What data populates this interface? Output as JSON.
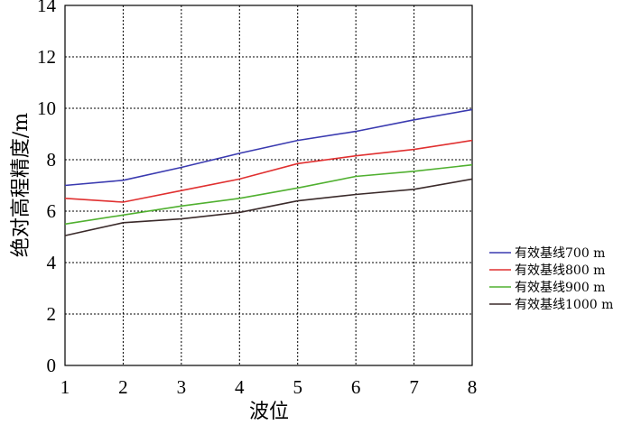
{
  "chart_data": {
    "type": "line",
    "xlabel": "波位",
    "ylabel": "绝对高程精度/m",
    "xlim": [
      1,
      8
    ],
    "ylim": [
      0,
      14
    ],
    "x_ticks": [
      "1",
      "2",
      "3",
      "4",
      "5",
      "6",
      "7",
      "8"
    ],
    "y_ticks": [
      "0",
      "2",
      "4",
      "6",
      "8",
      "10",
      "12",
      "14"
    ],
    "grid": true,
    "legend_position": "right",
    "x": [
      1,
      2,
      3,
      4,
      5,
      6,
      7,
      8
    ],
    "series": [
      {
        "name": "有效基线700 m",
        "color": "#3a3ab0",
        "values": [
          7.0,
          7.2,
          7.7,
          8.25,
          8.75,
          9.1,
          9.55,
          9.95
        ]
      },
      {
        "name": "有效基线800 m",
        "color": "#e03030",
        "values": [
          6.5,
          6.35,
          6.8,
          7.25,
          7.85,
          8.15,
          8.4,
          8.75
        ]
      },
      {
        "name": "有效基线900 m",
        "color": "#50b030",
        "values": [
          5.5,
          5.85,
          6.2,
          6.5,
          6.9,
          7.35,
          7.55,
          7.8
        ]
      },
      {
        "name": "有效基线1000 m",
        "color": "#3a2a2a",
        "values": [
          5.05,
          5.55,
          5.7,
          5.95,
          6.4,
          6.65,
          6.85,
          7.25
        ]
      }
    ]
  }
}
